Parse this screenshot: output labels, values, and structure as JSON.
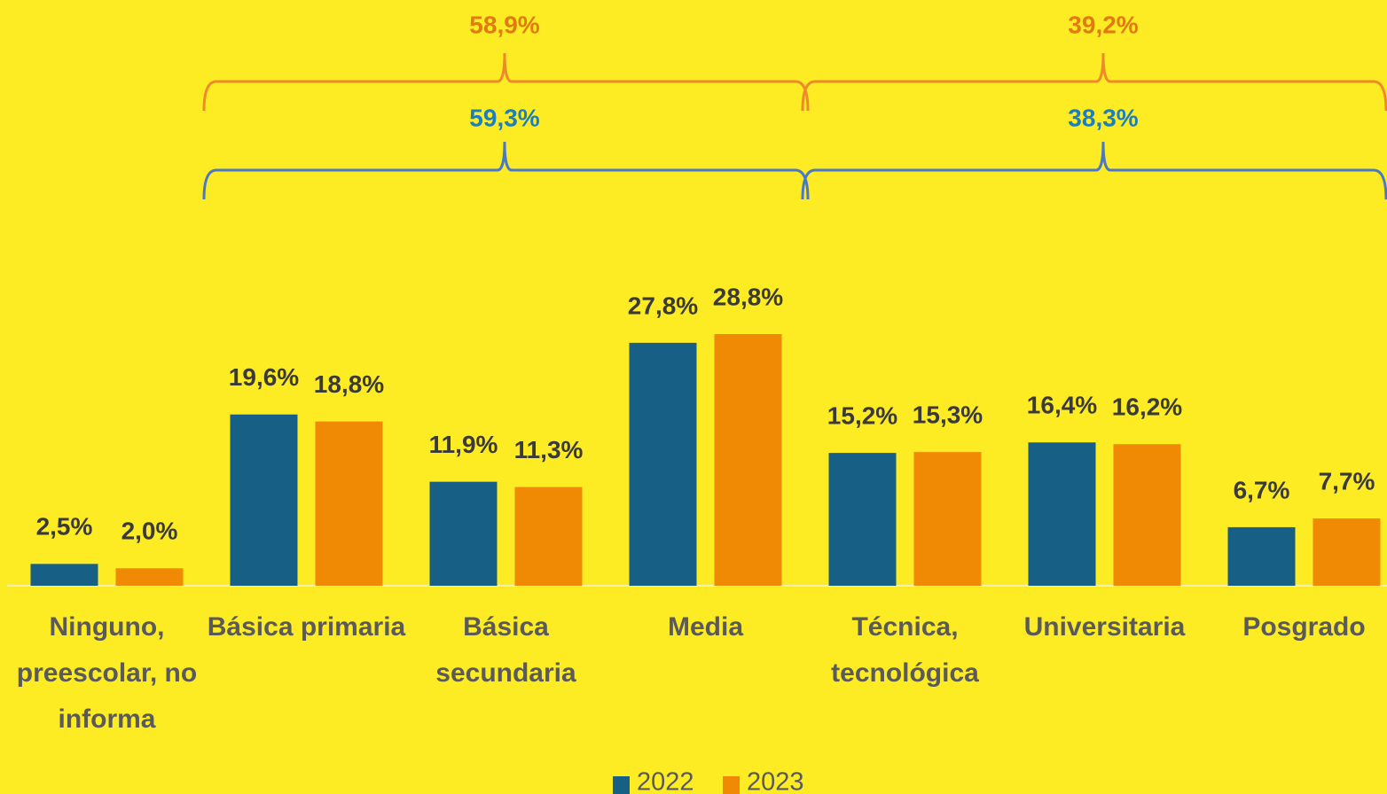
{
  "chart_data": {
    "type": "bar",
    "categories": [
      "Ninguno, preescolar, no informa",
      "Básica primaria",
      "Básica secundaria",
      "Media",
      "Técnica, tecnológica",
      "Universitaria",
      "Posgrado"
    ],
    "series": [
      {
        "name": "2022",
        "color": "#185f85",
        "values": [
          2.5,
          19.6,
          11.9,
          27.8,
          15.2,
          16.4,
          6.7
        ],
        "value_labels": [
          "2,5%",
          "19,6%",
          "11,9%",
          "27,8%",
          "15,2%",
          "16,4%",
          "6,7%"
        ],
        "totals": [
          {
            "value": 59.3,
            "label": "59,3%"
          },
          {
            "value": 38.3,
            "label": "38,3%"
          }
        ]
      },
      {
        "name": "2023",
        "color": "#f08a05",
        "values": [
          2.0,
          18.8,
          11.3,
          28.8,
          15.3,
          16.2,
          7.7
        ],
        "value_labels": [
          "2,0%",
          "18,8%",
          "11,3%",
          "28,8%",
          "15,3%",
          "16,2%",
          "7,7%"
        ],
        "totals": [
          {
            "value": 58.9,
            "label": "58,9%"
          },
          {
            "value": 39.2,
            "label": "39,2%"
          }
        ]
      }
    ]
  }
}
